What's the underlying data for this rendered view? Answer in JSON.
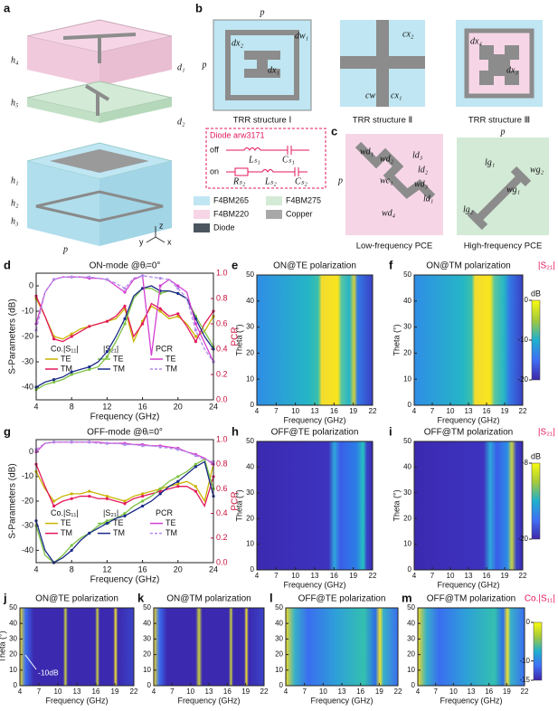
{
  "panel_a": {
    "label": "a",
    "labels": [
      "h₄",
      "h₅",
      "d₁",
      "d₂",
      "h₁",
      "h₂",
      "h₃",
      "p"
    ],
    "axes": [
      "z",
      "y",
      "x"
    ]
  },
  "panel_b": {
    "label": "b",
    "structures": [
      {
        "name": "TRR structure Ⅰ",
        "dims": [
          "p",
          "dw₁",
          "dx₂",
          "dx₁",
          "p"
        ]
      },
      {
        "name": "TRR structure Ⅱ",
        "dims": [
          "cx₂",
          "cw",
          "cx₁"
        ]
      },
      {
        "name": "TRR structure Ⅲ",
        "dims": [
          "dx₄",
          "dx₃"
        ]
      }
    ],
    "diode": {
      "title": "Diode arw3171",
      "off": "off",
      "on": "on",
      "off_parts": [
        "Lₛ₁",
        "Cₛ₁"
      ],
      "on_parts": [
        "Rₛ₂",
        "Lₛ₂",
        "Cₛ₂"
      ]
    },
    "legend": [
      {
        "name": "F4BM265",
        "color": "#bfe6f2"
      },
      {
        "name": "F4BM275",
        "color": "#d3ead6"
      },
      {
        "name": "F4BM220",
        "color": "#f6d6e6"
      },
      {
        "name": "Copper",
        "color": "#a8a8a8"
      },
      {
        "name": "Diode",
        "color": "#4a5560"
      }
    ]
  },
  "panel_c": {
    "label": "c",
    "low": {
      "name": "Low-frequency PCE",
      "dims": [
        "wd₁",
        "wd₂",
        "ld₃",
        "ld₂",
        "wc₁",
        "wd₃",
        "ld₁",
        "wd₄",
        "p"
      ]
    },
    "high": {
      "name": "High-frequency PCE",
      "dims": [
        "p",
        "lg₁",
        "wg₂",
        "wg₁",
        "lg₂"
      ]
    }
  },
  "chart_data": [
    {
      "type": "line",
      "label": "d",
      "title": "ON-mode @θᵢ=0°",
      "xlabel": "Frequency (GHz)",
      "ylabel": "S-Parameters (dB)",
      "y2label": "PCR",
      "x": [
        4,
        5,
        6,
        7,
        8,
        9,
        10,
        11,
        12,
        13,
        14,
        15,
        16,
        17,
        18,
        19,
        20,
        21,
        22,
        23,
        24
      ],
      "xlim": [
        4,
        24
      ],
      "xticks": [
        4,
        8,
        12,
        16,
        20,
        24
      ],
      "ylim": [
        -45,
        5
      ],
      "yticks": [
        0,
        -10,
        -20,
        -30,
        -40
      ],
      "y2lim": [
        0,
        1
      ],
      "y2ticks": [
        {
          "value": 0,
          "label": "0.0"
        },
        0.2,
        0.4,
        0.6,
        0.8,
        {
          "value": 1,
          "label": "1.0"
        }
      ],
      "series_groups": [
        {
          "name": "Co.|S₁₁|",
          "series": [
            {
              "name": "TE",
              "color": "#c9b400",
              "values": [
                -5,
                -12,
                -20,
                -21,
                -19,
                -17,
                -16,
                -15,
                -14,
                -13,
                -9,
                -22,
                -14,
                -8,
                -10,
                -13,
                -12,
                -15,
                -20,
                -18,
                -12
              ]
            },
            {
              "name": "TM",
              "color": "#e3195c",
              "values": [
                -4,
                -12,
                -21,
                -22,
                -20,
                -18,
                -16,
                -15,
                -14,
                -12,
                -8,
                -20,
                -15,
                -7,
                -9,
                -12,
                -11,
                -16,
                -22,
                -15,
                -10
              ]
            }
          ]
        },
        {
          "name": "|S₂₁|",
          "series": [
            {
              "name": "TE",
              "color": "#7cc242",
              "values": [
                -41,
                -39,
                -38,
                -37,
                -35,
                -34,
                -33,
                -32,
                -28,
                -22,
                -15,
                -5,
                -1,
                -1,
                -3,
                -2,
                -3,
                -5,
                -12,
                -18,
                -24
              ]
            },
            {
              "name": "TM",
              "color": "#1b2a8a",
              "values": [
                -40,
                -38,
                -37,
                -36,
                -34,
                -33,
                -32,
                -30,
                -26,
                -20,
                -13,
                -4,
                -1,
                0,
                -2,
                -2,
                -3,
                -5,
                -13,
                -20,
                -25
              ]
            }
          ]
        },
        {
          "name": "PCR",
          "series": [
            {
              "name": "TE",
              "color": "#d23fd2",
              "axis": "y2",
              "values": [
                0.6,
                0.85,
                0.95,
                0.97,
                0.97,
                0.97,
                0.96,
                0.96,
                0.95,
                0.9,
                0.85,
                0.95,
                0.98,
                0.35,
                0.9,
                0.95,
                0.9,
                0.85,
                0.6,
                0.45,
                0.3
              ]
            },
            {
              "name": "TM",
              "color": "#b28ce6",
              "axis": "y2",
              "linestyle": "dashed",
              "values": [
                0.55,
                0.85,
                0.95,
                0.97,
                0.97,
                0.97,
                0.97,
                0.96,
                0.95,
                0.92,
                0.88,
                0.96,
                0.98,
                0.97,
                0.96,
                0.95,
                0.88,
                0.8,
                0.55,
                0.4,
                0.3
              ]
            }
          ]
        }
      ]
    },
    {
      "type": "heatmap",
      "label": "e",
      "title": "ON@TE polarization",
      "xlabel": "Frequency (GHz)",
      "ylabel": "Theta (°)",
      "xlim": [
        4,
        22
      ],
      "xticks": [
        4,
        7,
        10,
        13,
        16,
        19,
        22
      ],
      "ylim": [
        0,
        50
      ],
      "yticks": [
        0,
        10,
        20,
        30,
        40,
        50
      ]
    },
    {
      "type": "heatmap",
      "label": "f",
      "title": "ON@TM polarization",
      "xlabel": "Frequency (GHz)",
      "ylabel": "Theta (°)",
      "xlim": [
        4,
        22
      ],
      "xticks": [
        4,
        7,
        10,
        13,
        16,
        19,
        22
      ],
      "ylim": [
        0,
        50
      ],
      "yticks": [
        0,
        10,
        20,
        30,
        40,
        50
      ],
      "colorbar": {
        "title": "|S₂₁|",
        "unit": "dB",
        "lim": [
          -20,
          0
        ],
        "ticks": [
          0,
          -10,
          -20
        ]
      }
    },
    {
      "type": "line",
      "label": "g",
      "title": "OFF-mode @θᵢ=0°",
      "xlabel": "Frequency (GHz)",
      "ylabel": "S-Parameters (dB)",
      "y2label": "PCR",
      "x": [
        4,
        5,
        6,
        7,
        8,
        9,
        10,
        11,
        12,
        13,
        14,
        15,
        16,
        17,
        18,
        19,
        20,
        21,
        22,
        23,
        24
      ],
      "xlim": [
        4,
        24
      ],
      "xticks": [
        4,
        8,
        12,
        16,
        20,
        24
      ],
      "ylim": [
        -45,
        5
      ],
      "yticks": [
        0,
        -10,
        -20,
        -30,
        -40
      ],
      "y2lim": [
        0,
        1
      ],
      "y2ticks": [
        {
          "value": 0,
          "label": "0.0"
        },
        0.2,
        0.4,
        0.6,
        0.8,
        {
          "value": 1,
          "label": "1.0"
        }
      ],
      "series_groups": [
        {
          "name": "Co.|S₁₁|",
          "series": [
            {
              "name": "TE",
              "color": "#c9b400",
              "values": [
                -8,
                -15,
                -20,
                -18,
                -17,
                -17,
                -16,
                -17,
                -18,
                -19,
                -20,
                -18,
                -17,
                -16,
                -15,
                -14,
                -13,
                -12,
                -14,
                -20,
                -5
              ]
            },
            {
              "name": "TM",
              "color": "#e3195c",
              "values": [
                -5,
                -14,
                -22,
                -20,
                -19,
                -18,
                -18,
                -19,
                -19,
                -20,
                -21,
                -19,
                -18,
                -17,
                -16,
                -15,
                -14,
                -14,
                -16,
                -22,
                -10
              ]
            }
          ]
        },
        {
          "name": "|S₂₁|",
          "series": [
            {
              "name": "TE",
              "color": "#7cc242",
              "values": [
                -30,
                -42,
                -45,
                -42,
                -38,
                -35,
                -33,
                -30,
                -28,
                -27,
                -25,
                -22,
                -20,
                -18,
                -15,
                -12,
                -10,
                -8,
                -5,
                -3,
                -15
              ]
            },
            {
              "name": "TM",
              "color": "#1b2a8a",
              "values": [
                -28,
                -40,
                -45,
                -43,
                -40,
                -36,
                -33,
                -31,
                -29,
                -27,
                -26,
                -24,
                -22,
                -20,
                -17,
                -14,
                -12,
                -9,
                -6,
                -4,
                -18
              ]
            }
          ]
        },
        {
          "name": "PCR",
          "series": [
            {
              "name": "TE",
              "color": "#d23fd2",
              "axis": "y2",
              "values": [
                0.9,
                0.97,
                0.98,
                0.98,
                0.98,
                0.98,
                0.98,
                0.98,
                0.97,
                0.97,
                0.97,
                0.96,
                0.96,
                0.95,
                0.95,
                0.94,
                0.93,
                0.9,
                0.88,
                0.85,
                0.8
              ]
            },
            {
              "name": "TM",
              "color": "#b28ce6",
              "axis": "y2",
              "linestyle": "dashed",
              "values": [
                0.92,
                0.97,
                0.98,
                0.98,
                0.98,
                0.98,
                0.98,
                0.97,
                0.97,
                0.97,
                0.96,
                0.96,
                0.95,
                0.95,
                0.94,
                0.93,
                0.92,
                0.9,
                0.87,
                0.84,
                0.82
              ]
            }
          ]
        }
      ]
    },
    {
      "type": "heatmap",
      "label": "h",
      "title": "OFF@TE polarization",
      "xlabel": "Frequency (GHz)",
      "ylabel": "Theta (°)",
      "xlim": [
        4,
        22
      ],
      "xticks": [
        4,
        7,
        10,
        13,
        16,
        19,
        22
      ],
      "ylim": [
        0,
        50
      ],
      "yticks": [
        0,
        10,
        20,
        30,
        40,
        50
      ]
    },
    {
      "type": "heatmap",
      "label": "i",
      "title": "OFF@TM polarization",
      "xlabel": "Frequency (GHz)",
      "ylabel": "Theta (°)",
      "xlim": [
        4,
        22
      ],
      "xticks": [
        4,
        7,
        10,
        13,
        16,
        19,
        22
      ],
      "ylim": [
        0,
        50
      ],
      "yticks": [
        0,
        10,
        20,
        30,
        40,
        50
      ],
      "colorbar": {
        "title": "|S₂₁|",
        "unit": "dB",
        "lim": [
          -20,
          -8
        ],
        "ticks": [
          -8,
          -20
        ]
      }
    },
    {
      "type": "heatmap",
      "label": "j",
      "title": "ON@TE polarization",
      "xlabel": "Frequency (GHz)",
      "ylabel": "Theta (°)",
      "annotation": "-10dB",
      "xlim": [
        4,
        22
      ],
      "xticks": [
        4,
        7,
        10,
        13,
        16,
        19,
        22
      ],
      "ylim": [
        0,
        50
      ],
      "yticks": [
        0,
        10,
        20,
        30,
        40,
        50
      ]
    },
    {
      "type": "heatmap",
      "label": "k",
      "title": "ON@TM polarization",
      "xlabel": "Frequency (GHz)",
      "xlim": [
        4,
        22
      ],
      "xticks": [
        4,
        7,
        10,
        13,
        16,
        19,
        22
      ],
      "ylim": [
        0,
        50
      ],
      "yticks": [
        0,
        10,
        20,
        30,
        40,
        50
      ]
    },
    {
      "type": "heatmap",
      "label": "l",
      "title": "OFF@TE polarization",
      "xlabel": "Frequency (GHz)",
      "xlim": [
        4,
        22
      ],
      "xticks": [
        4,
        7,
        10,
        13,
        16,
        19,
        22
      ],
      "ylim": [
        0,
        50
      ],
      "yticks": [
        0,
        10,
        20,
        30,
        40,
        50
      ]
    },
    {
      "type": "heatmap",
      "label": "m",
      "title": "OFF@TM polarization",
      "xlabel": "Frequency (GHz)",
      "xlim": [
        4,
        22
      ],
      "xticks": [
        4,
        7,
        10,
        13,
        16,
        19,
        22
      ],
      "ylim": [
        0,
        50
      ],
      "yticks": [
        0,
        10,
        20,
        30,
        40,
        50
      ],
      "colorbar": {
        "title": "Co.|S₁₁|",
        "lim": [
          -15,
          0
        ],
        "ticks": [
          0,
          -10,
          -15
        ]
      }
    }
  ]
}
